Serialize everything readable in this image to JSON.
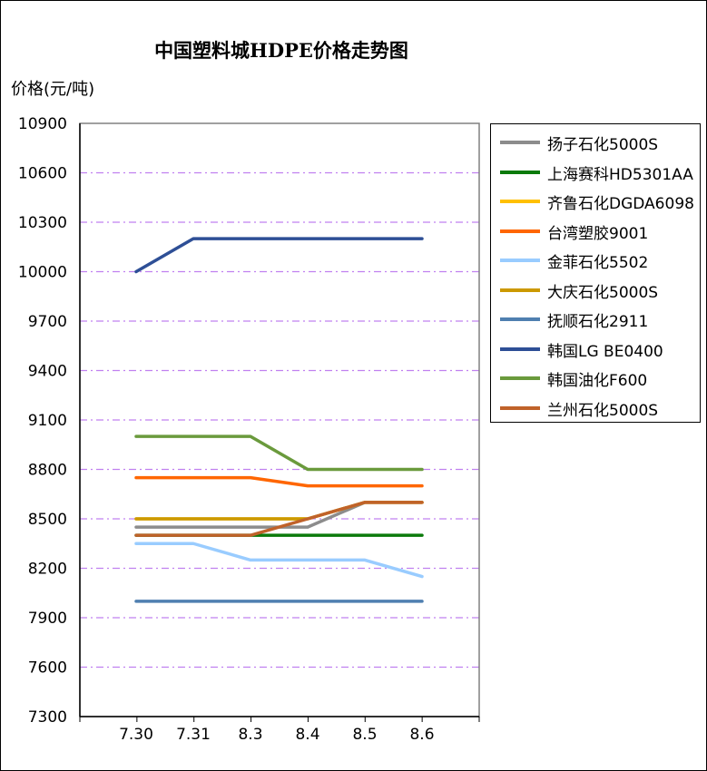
{
  "chart_data": {
    "type": "line",
    "title": "中国塑料城HDPE价格走势图",
    "ylabel": "价格(元/吨)",
    "xlabel": "",
    "categories": [
      "7.30",
      "7.31",
      "8.3",
      "8.4",
      "8.5",
      "8.6"
    ],
    "yticks": [
      7300,
      7600,
      7900,
      8200,
      8500,
      8800,
      9100,
      9400,
      9700,
      10000,
      10300,
      10600,
      10900
    ],
    "ylim": [
      7300,
      10900
    ],
    "grid": "horizontal dash-dot",
    "legend_position": "right",
    "series": [
      {
        "name": "扬子石化5000S",
        "color": "#8c8c8c",
        "values": [
          8450,
          8450,
          8450,
          8450,
          8600,
          8600
        ]
      },
      {
        "name": "上海赛科HD5301AA",
        "color": "#0a7a0a",
        "values": [
          8400,
          8400,
          8400,
          8400,
          8400,
          8400
        ]
      },
      {
        "name": "齐鲁石化DGDA6098",
        "color": "#ffc000",
        "values": [
          8500,
          8500,
          8500,
          8500,
          8600,
          8600
        ]
      },
      {
        "name": "台湾塑胶9001",
        "color": "#ff6600",
        "values": [
          8750,
          8750,
          8750,
          8700,
          8700,
          8700
        ]
      },
      {
        "name": "金菲石化5502",
        "color": "#99ccff",
        "values": [
          8350,
          8350,
          8250,
          8250,
          8250,
          8150
        ]
      },
      {
        "name": "大庆石化5000S",
        "color": "#cc9900",
        "values": [
          8500,
          8500,
          8500,
          8500,
          8600,
          8600
        ]
      },
      {
        "name": "抚顺石化2911",
        "color": "#4f7fb0",
        "values": [
          8000,
          8000,
          8000,
          8000,
          8000,
          8000
        ]
      },
      {
        "name": "韩国LG BE0400",
        "color": "#2e4f96",
        "values": [
          10000,
          10200,
          10200,
          10200,
          10200,
          10200
        ]
      },
      {
        "name": "韩国油化F600",
        "color": "#6a9a3c",
        "values": [
          9000,
          9000,
          9000,
          8800,
          8800,
          8800
        ]
      },
      {
        "name": "兰州石化5000S",
        "color": "#c0622a",
        "values": [
          8400,
          8400,
          8400,
          8500,
          8600,
          8600
        ]
      }
    ]
  }
}
